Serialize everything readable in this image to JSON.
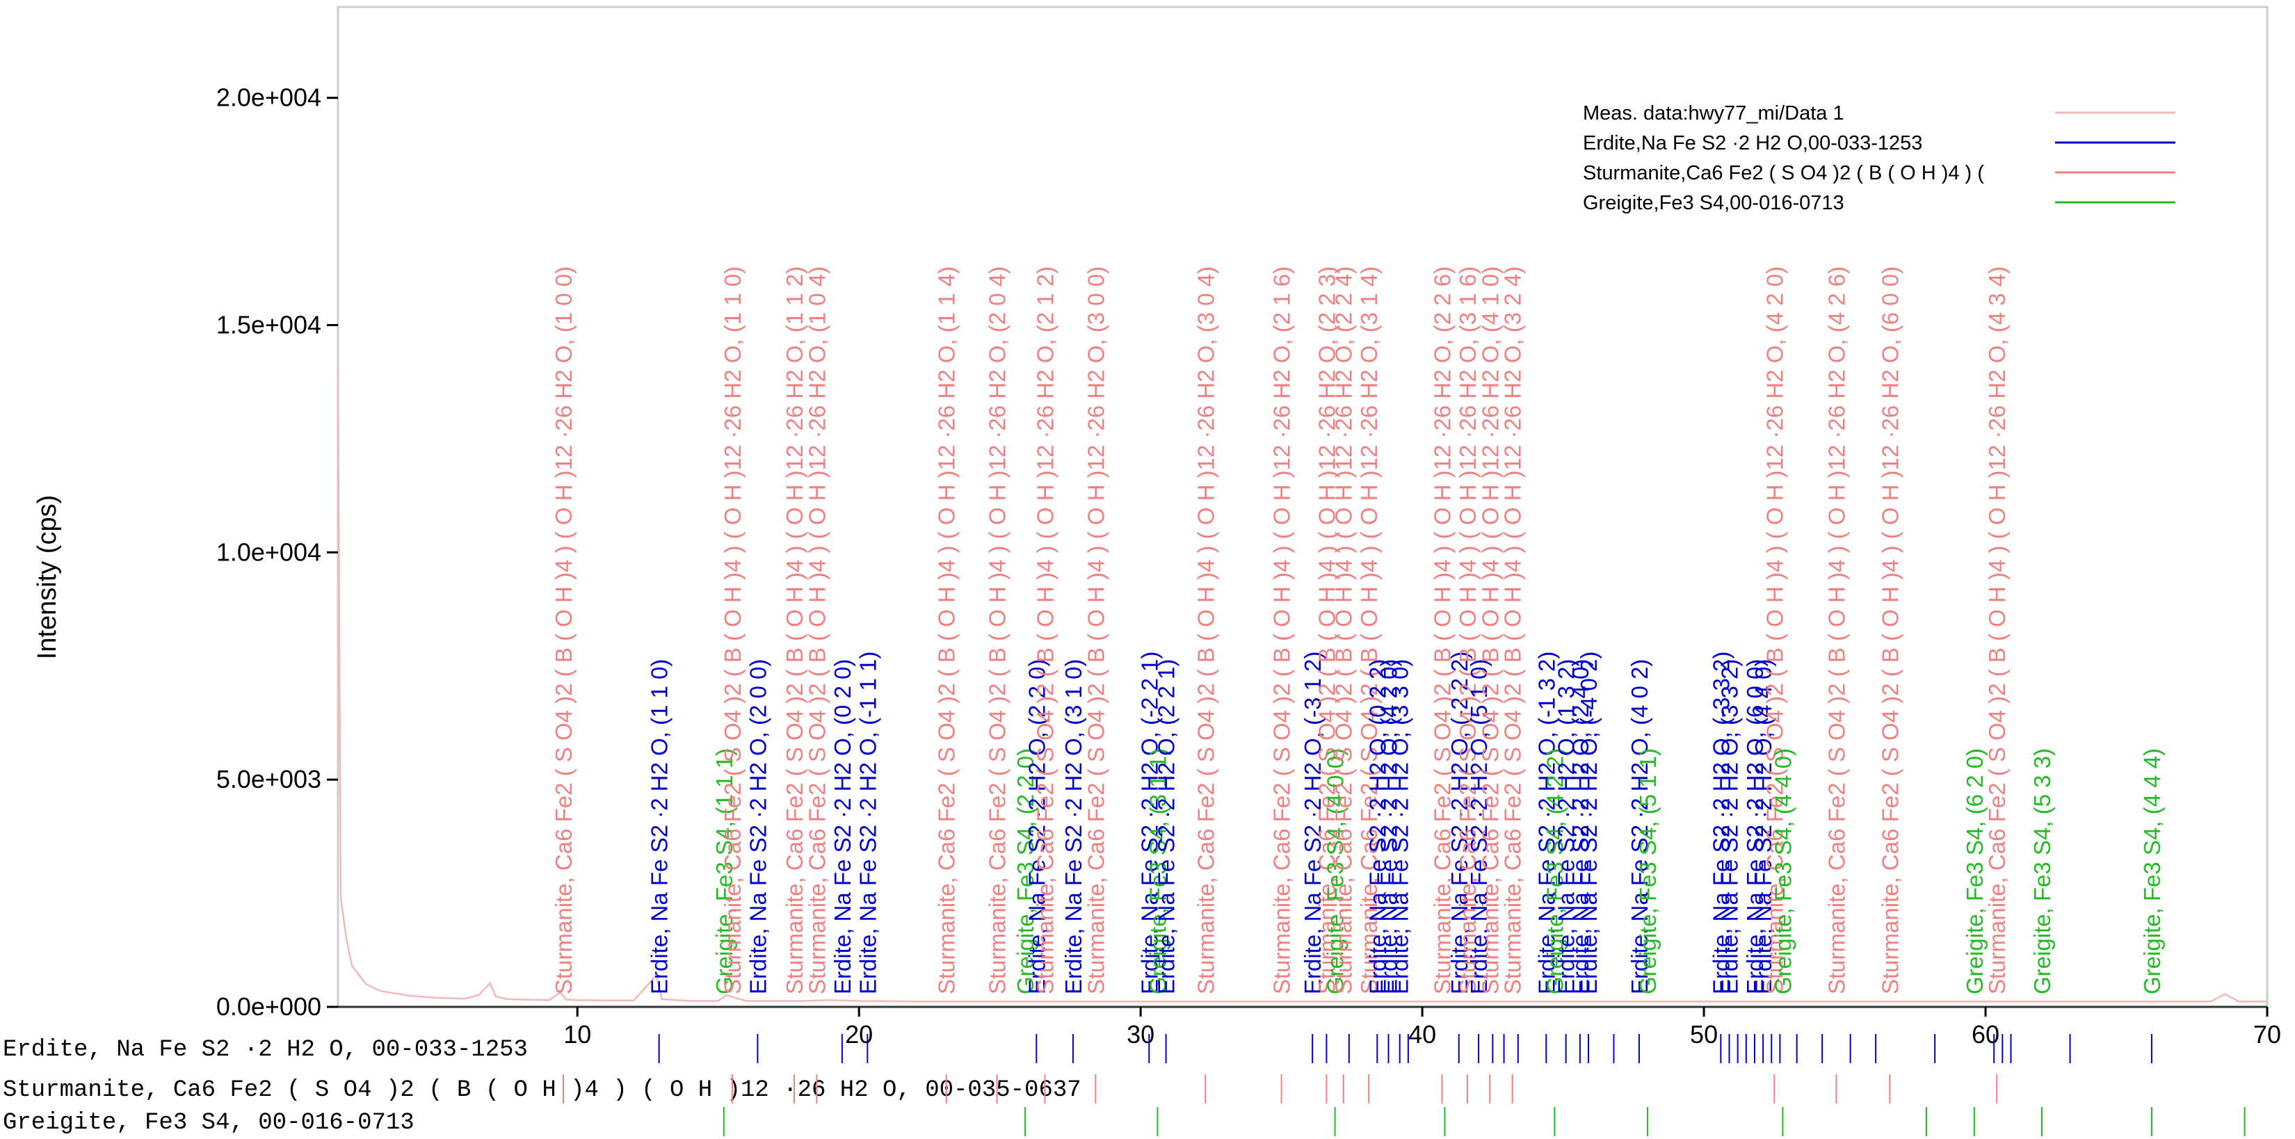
{
  "chart_data": {
    "type": "line",
    "ylabel": "Intensity (cps)",
    "xlabel": "",
    "xlim": [
      1.5,
      70
    ],
    "ylim": [
      0,
      22000
    ],
    "x_ticks": [
      10,
      20,
      30,
      40,
      50,
      60,
      70
    ],
    "y_ticks": [
      0,
      5000,
      10000,
      15000,
      20000
    ],
    "y_tick_labels": [
      "0.0e+000",
      "5.0e+003",
      "1.0e+004",
      "1.5e+004",
      "2.0e+004"
    ],
    "grid": false,
    "legend_position": "top-right",
    "colors": {
      "meas": "#f2b8b8",
      "erdite": "#0000cc",
      "sturmanite": "#f08080",
      "greigite": "#22bb22"
    },
    "legend": [
      {
        "label": "Meas. data:hwy77_mi/Data 1",
        "color": "#f2b8b8"
      },
      {
        "label": "Erdite,Na Fe S2 ·2 H2 O,00-033-1253",
        "color": "#0000cc"
      },
      {
        "label": "Sturmanite,Ca6 Fe2 ( S O4 )2 ( B ( O H )4 ) (",
        "color": "#f08080"
      },
      {
        "label": "Greigite,Fe3 S4,00-016-0713",
        "color": "#22bb22"
      }
    ],
    "series": [
      {
        "name": "Meas. data:hwy77_mi/Data 1",
        "x": [
          1.5,
          1.6,
          1.8,
          2.0,
          2.5,
          3.0,
          4.0,
          5.0,
          6.0,
          6.5,
          6.9,
          7.1,
          7.5,
          8.0,
          9.0,
          9.4,
          9.6,
          10.0,
          11.0,
          12.0,
          12.6,
          12.8,
          13.0,
          14.0,
          15.0,
          15.3,
          15.6,
          16.0,
          17.0,
          18.0,
          19.0,
          20.0,
          22.0,
          24.0,
          26.0,
          28.0,
          30.0,
          32.0,
          34.0,
          36.0,
          38.0,
          40.0,
          42.0,
          44.0,
          46.0,
          48.0,
          50.0,
          52.0,
          54.0,
          56.0,
          58.0,
          60.0,
          62.0,
          64.0,
          66.0,
          67.0,
          68.0,
          68.5,
          69.0,
          70.0
        ],
        "y": [
          14000,
          2400,
          1500,
          900,
          500,
          350,
          250,
          200,
          180,
          260,
          520,
          230,
          170,
          160,
          150,
          320,
          160,
          150,
          140,
          140,
          550,
          700,
          170,
          130,
          130,
          260,
          200,
          130,
          130,
          130,
          150,
          130,
          120,
          120,
          120,
          120,
          120,
          120,
          120,
          120,
          120,
          120,
          120,
          120,
          120,
          120,
          120,
          120,
          120,
          120,
          120,
          120,
          120,
          120,
          120,
          120,
          120,
          280,
          120,
          120
        ]
      }
    ],
    "peak_labels": [
      {
        "x": 9.5,
        "phase": "sturmanite",
        "text": "Sturmanite, Ca6 Fe2 ( S O4 )2 ( B ( O H )4 ) ( O H )12 ·26 H2 O, (1 0 0)"
      },
      {
        "x": 12.9,
        "phase": "erdite",
        "text": "Erdite, Na Fe S2 ·2 H2 O, (1 1 0)"
      },
      {
        "x": 15.2,
        "phase": "greigite",
        "text": "Greigite, Fe3 S4, (1 1 1)"
      },
      {
        "x": 15.5,
        "phase": "sturmanite",
        "text": "Sturmanite, Ca6 Fe2 ( S O4 )2 ( B ( O H )4 ) ( O H )12 ·26 H2 O, (1 1 0)"
      },
      {
        "x": 16.4,
        "phase": "erdite",
        "text": "Erdite, Na Fe S2 ·2 H2 O, (2 0 0)"
      },
      {
        "x": 17.7,
        "phase": "sturmanite",
        "text": "Sturmanite, Ca6 Fe2 ( S O4 )2 ( B ( O H )4 ) ( O H )12 ·26 H2 O, (1 1 2)"
      },
      {
        "x": 18.5,
        "phase": "sturmanite",
        "text": "Sturmanite, Ca6 Fe2 ( S O4 )2 ( B ( O H )4 ) ( O H )12 ·26 H2 O, (1 0 4)"
      },
      {
        "x": 19.4,
        "phase": "erdite",
        "text": "Erdite, Na Fe S2 ·2 H2 O, (0 2 0)"
      },
      {
        "x": 20.3,
        "phase": "erdite",
        "text": "Erdite, Na Fe S2 ·2 H2 O, (-1 1 1)"
      },
      {
        "x": 23.1,
        "phase": "sturmanite",
        "text": "Sturmanite, Ca6 Fe2 ( S O4 )2 ( B ( O H )4 ) ( O H )12 ·26 H2 O, (1 1 4)"
      },
      {
        "x": 24.9,
        "phase": "sturmanite",
        "text": "Sturmanite, Ca6 Fe2 ( S O4 )2 ( B ( O H )4 ) ( O H )12 ·26 H2 O, (2 0 4)"
      },
      {
        "x": 25.9,
        "phase": "greigite",
        "text": "Greigite, Fe3 S4, (2 2 0)"
      },
      {
        "x": 26.3,
        "phase": "erdite",
        "text": "Erdite, Na Fe S2 ·2 H2 O, (2 2 0)"
      },
      {
        "x": 26.6,
        "phase": "sturmanite",
        "text": "Sturmanite, Ca6 Fe2 ( S O4 )2 ( B ( O H )4 ) ( O H )12 ·26 H2 O, (2 1 2)"
      },
      {
        "x": 27.6,
        "phase": "erdite",
        "text": "Erdite, Na Fe S2 ·2 H2 O, (3 1 0)"
      },
      {
        "x": 28.4,
        "phase": "sturmanite",
        "text": "Sturmanite, Ca6 Fe2 ( S O4 )2 ( B ( O H )4 ) ( O H )12 ·26 H2 O, (3 0 0)"
      },
      {
        "x": 30.3,
        "phase": "erdite",
        "text": "Erdite, Na Fe S2 ·2 H2 O, (-2 2 1)"
      },
      {
        "x": 30.6,
        "phase": "greigite",
        "text": "Greigite, Fe3 S4, (3 1 1)"
      },
      {
        "x": 30.9,
        "phase": "erdite",
        "text": "Erdite, Na Fe S2 ·2 H2 O, (2 2 1)"
      },
      {
        "x": 32.3,
        "phase": "sturmanite",
        "text": "Sturmanite, Ca6 Fe2 ( S O4 )2 ( B ( O H )4 ) ( O H )12 ·26 H2 O, (3 0 4)"
      },
      {
        "x": 35.0,
        "phase": "sturmanite",
        "text": "Sturmanite, Ca6 Fe2 ( S O4 )2 ( B ( O H )4 ) ( O H )12 ·26 H2 O, (2 1 6)"
      },
      {
        "x": 36.1,
        "phase": "erdite",
        "text": "Erdite, Na Fe S2 ·2 H2 O, (-3 1 2)"
      },
      {
        "x": 36.6,
        "phase": "sturmanite",
        "text": "Sturmanite, Ca6 Fe2 ( S O4 )2 ( B ( O H )4 ) ( O H )12 ·26 H2 O, (2 2 3)"
      },
      {
        "x": 36.9,
        "phase": "greigite",
        "text": "Greigite, Fe3 S4, (4 0 0)"
      },
      {
        "x": 37.2,
        "phase": "sturmanite",
        "text": "Sturmanite, Ca6 Fe2 ( S O4 )2 ( B ( O H )4 ) ( O H )12 ·26 H2 O, (2 2 4)"
      },
      {
        "x": 38.1,
        "phase": "sturmanite",
        "text": "Sturmanite, Ca6 Fe2 ( S O4 )2 ( B ( O H )4 ) ( O H )12 ·26 H2 O, (3 1 4)"
      },
      {
        "x": 38.4,
        "phase": "erdite",
        "text": "Erdite, Na Fe S2 ·2 H2 O, (0 2 2)"
      },
      {
        "x": 38.8,
        "phase": "erdite",
        "text": "Erdite, Na Fe S2 ·2 H2 O, (4 2 0)"
      },
      {
        "x": 39.2,
        "phase": "erdite",
        "text": "Erdite, Na Fe S2 ·2 H2 O, (3 3 0)"
      },
      {
        "x": 40.7,
        "phase": "sturmanite",
        "text": "Sturmanite, Ca6 Fe2 ( S O4 )2 ( B ( O H )4 ) ( O H )12 ·26 H2 O, (2 2 6)"
      },
      {
        "x": 41.3,
        "phase": "erdite",
        "text": "Erdite, Na Fe S2 ·2 H2 O, (-2 2 2)"
      },
      {
        "x": 41.6,
        "phase": "sturmanite",
        "text": "Sturmanite, Ca6 Fe2 ( S O4 )2 ( B ( O H )4 ) ( O H )12 ·26 H2 O, (3 1 6)"
      },
      {
        "x": 42.0,
        "phase": "erdite",
        "text": "Erdite, Na Fe S2 ·2 H2 O, (5 1 0)"
      },
      {
        "x": 42.4,
        "phase": "sturmanite",
        "text": "Sturmanite, Ca6 Fe2 ( S O4 )2 ( B ( O H )4 ) ( O H )12 ·26 H2 O, (4 1 0)"
      },
      {
        "x": 43.2,
        "phase": "sturmanite",
        "text": "Sturmanite, Ca6 Fe2 ( S O4 )2 ( B ( O H )4 ) ( O H )12 ·26 H2 O, (3 2 4)"
      },
      {
        "x": 44.4,
        "phase": "erdite",
        "text": "Erdite, Na Fe S2 ·2 H2 O, (-1 3 2)"
      },
      {
        "x": 44.7,
        "phase": "greigite",
        "text": "Greigite, Fe3 S4, (4 2 2)"
      },
      {
        "x": 45.1,
        "phase": "erdite",
        "text": "Erdite, Na Fe S2 ·2 H2 O, (1 3 2)"
      },
      {
        "x": 45.6,
        "phase": "erdite",
        "text": "Erdite, Na Fe S2 ·2 H2 O, (2 4 0)"
      },
      {
        "x": 45.9,
        "phase": "erdite",
        "text": "Erdite, Na Fe S2 ·2 H2 O, (-4 0 2)"
      },
      {
        "x": 47.7,
        "phase": "erdite",
        "text": "Erdite, Na Fe S2 ·2 H2 O, (4 0 2)"
      },
      {
        "x": 48.0,
        "phase": "greigite",
        "text": "Greigite, Fe3 S4, (5 1 1)"
      },
      {
        "x": 50.6,
        "phase": "erdite",
        "text": "Erdite, Na Fe S2 ·2 H2 O, (-3 3 2)"
      },
      {
        "x": 50.9,
        "phase": "erdite",
        "text": "Erdite, Na Fe S2 ·2 H2 O, (3 3 2)"
      },
      {
        "x": 51.8,
        "phase": "erdite",
        "text": "Erdite, Na Fe S2 ·2 H2 O, (6 0 0)"
      },
      {
        "x": 52.1,
        "phase": "erdite",
        "text": "Erdite, Na Fe S2 ·2 H2 O, (4 4 0)"
      },
      {
        "x": 52.5,
        "phase": "sturmanite",
        "text": "Sturmanite, Ca6 Fe2 ( S O4 )2 ( B ( O H )4 ) ( O H )12 ·26 H2 O, (4 2 0)"
      },
      {
        "x": 52.8,
        "phase": "greigite",
        "text": "Greigite, Fe3 S4, (4 4 0)"
      },
      {
        "x": 54.7,
        "phase": "sturmanite",
        "text": "Sturmanite, Ca6 Fe2 ( S O4 )2 ( B ( O H )4 ) ( O H )12 ·26 H2 O, (4 2 6)"
      },
      {
        "x": 56.6,
        "phase": "sturmanite",
        "text": "Sturmanite, Ca6 Fe2 ( S O4 )2 ( B ( O H )4 ) ( O H )12 ·26 H2 O, (6 0 0)"
      },
      {
        "x": 59.6,
        "phase": "greigite",
        "text": "Greigite, Fe3 S4, (6 2 0)"
      },
      {
        "x": 60.4,
        "phase": "sturmanite",
        "text": "Sturmanite, Ca6 Fe2 ( S O4 )2 ( B ( O H )4 ) ( O H )12 ·26 H2 O, (4 3 4)"
      },
      {
        "x": 62.0,
        "phase": "greigite",
        "text": "Greigite, Fe3 S4, (5 3 3)"
      },
      {
        "x": 65.9,
        "phase": "greigite",
        "text": "Greigite, Fe3 S4, (4 4 4)"
      }
    ],
    "reference_phases": [
      {
        "name": "Erdite, Na Fe S2 ·2 H2 O, 00-033-1253",
        "phase": "erdite",
        "sticks": [
          12.9,
          16.4,
          19.4,
          20.3,
          26.3,
          27.6,
          30.3,
          30.9,
          36.1,
          36.6,
          37.4,
          38.4,
          38.8,
          39.2,
          39.5,
          41.3,
          42.0,
          42.5,
          42.9,
          43.4,
          44.4,
          45.1,
          45.6,
          45.9,
          46.8,
          47.7,
          50.6,
          50.9,
          51.2,
          51.5,
          51.8,
          52.1,
          52.4,
          52.7,
          53.3,
          54.2,
          55.2,
          56.1,
          58.2,
          60.3,
          60.6,
          60.9,
          63.0,
          65.9
        ]
      },
      {
        "name": "Sturmanite, Ca6 Fe2 ( S O4 )2 ( B ( O H )4 ) ( O H )12 ·26 H2 O, 00-035-0637",
        "phase": "sturmanite",
        "sticks": [
          9.5,
          15.5,
          17.7,
          18.5,
          23.1,
          24.9,
          26.6,
          28.4,
          32.3,
          35.0,
          36.6,
          37.2,
          38.1,
          40.7,
          41.6,
          42.4,
          43.2,
          52.5,
          54.7,
          56.6,
          60.4
        ]
      },
      {
        "name": "Greigite, Fe3 S4, 00-016-0713",
        "phase": "greigite",
        "sticks": [
          15.2,
          25.9,
          30.6,
          36.9,
          40.8,
          44.7,
          48.0,
          52.8,
          57.9,
          59.6,
          62.0,
          65.9,
          69.2
        ]
      }
    ]
  }
}
